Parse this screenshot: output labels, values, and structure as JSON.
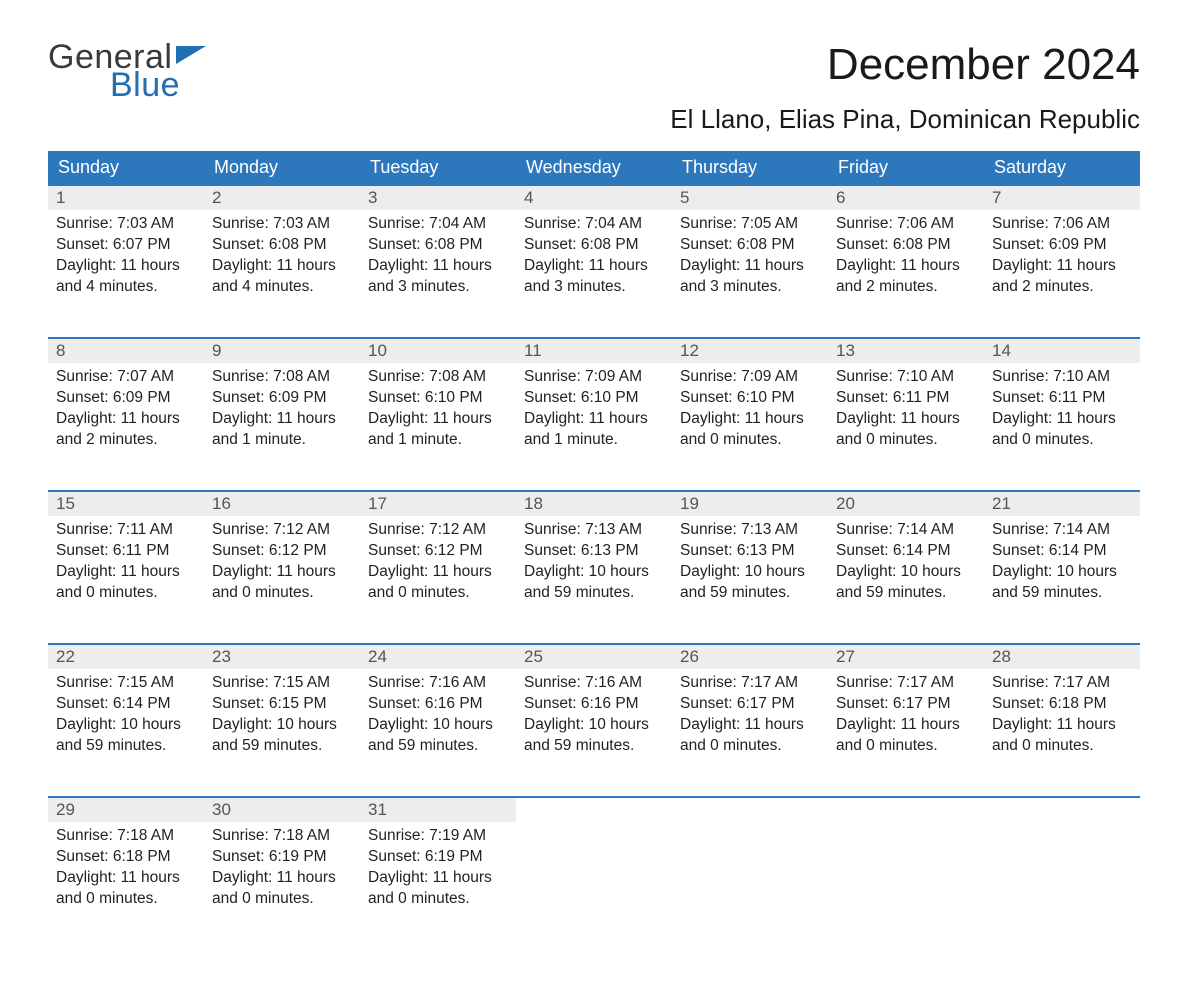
{
  "logo": {
    "word1": "General",
    "word2": "Blue",
    "flag_color": "#1f6fb2",
    "text_color_dark": "#3a3a3a"
  },
  "title": "December 2024",
  "location": "El Llano, Elias Pina, Dominican Republic",
  "colors": {
    "header_bg": "#2d77bd",
    "header_text": "#ffffff",
    "daynum_bg": "#ededed",
    "border": "#2d77bd",
    "body_text": "#222222",
    "page_bg": "#ffffff"
  },
  "weekdays": [
    "Sunday",
    "Monday",
    "Tuesday",
    "Wednesday",
    "Thursday",
    "Friday",
    "Saturday"
  ],
  "labels": {
    "sunrise": "Sunrise:",
    "sunset": "Sunset:",
    "daylight": "Daylight:"
  },
  "weeks": [
    [
      {
        "n": "1",
        "sunrise": "7:03 AM",
        "sunset": "6:07 PM",
        "d1": "11 hours",
        "d2": "and 4 minutes."
      },
      {
        "n": "2",
        "sunrise": "7:03 AM",
        "sunset": "6:08 PM",
        "d1": "11 hours",
        "d2": "and 4 minutes."
      },
      {
        "n": "3",
        "sunrise": "7:04 AM",
        "sunset": "6:08 PM",
        "d1": "11 hours",
        "d2": "and 3 minutes."
      },
      {
        "n": "4",
        "sunrise": "7:04 AM",
        "sunset": "6:08 PM",
        "d1": "11 hours",
        "d2": "and 3 minutes."
      },
      {
        "n": "5",
        "sunrise": "7:05 AM",
        "sunset": "6:08 PM",
        "d1": "11 hours",
        "d2": "and 3 minutes."
      },
      {
        "n": "6",
        "sunrise": "7:06 AM",
        "sunset": "6:08 PM",
        "d1": "11 hours",
        "d2": "and 2 minutes."
      },
      {
        "n": "7",
        "sunrise": "7:06 AM",
        "sunset": "6:09 PM",
        "d1": "11 hours",
        "d2": "and 2 minutes."
      }
    ],
    [
      {
        "n": "8",
        "sunrise": "7:07 AM",
        "sunset": "6:09 PM",
        "d1": "11 hours",
        "d2": "and 2 minutes."
      },
      {
        "n": "9",
        "sunrise": "7:08 AM",
        "sunset": "6:09 PM",
        "d1": "11 hours",
        "d2": "and 1 minute."
      },
      {
        "n": "10",
        "sunrise": "7:08 AM",
        "sunset": "6:10 PM",
        "d1": "11 hours",
        "d2": "and 1 minute."
      },
      {
        "n": "11",
        "sunrise": "7:09 AM",
        "sunset": "6:10 PM",
        "d1": "11 hours",
        "d2": "and 1 minute."
      },
      {
        "n": "12",
        "sunrise": "7:09 AM",
        "sunset": "6:10 PM",
        "d1": "11 hours",
        "d2": "and 0 minutes."
      },
      {
        "n": "13",
        "sunrise": "7:10 AM",
        "sunset": "6:11 PM",
        "d1": "11 hours",
        "d2": "and 0 minutes."
      },
      {
        "n": "14",
        "sunrise": "7:10 AM",
        "sunset": "6:11 PM",
        "d1": "11 hours",
        "d2": "and 0 minutes."
      }
    ],
    [
      {
        "n": "15",
        "sunrise": "7:11 AM",
        "sunset": "6:11 PM",
        "d1": "11 hours",
        "d2": "and 0 minutes."
      },
      {
        "n": "16",
        "sunrise": "7:12 AM",
        "sunset": "6:12 PM",
        "d1": "11 hours",
        "d2": "and 0 minutes."
      },
      {
        "n": "17",
        "sunrise": "7:12 AM",
        "sunset": "6:12 PM",
        "d1": "11 hours",
        "d2": "and 0 minutes."
      },
      {
        "n": "18",
        "sunrise": "7:13 AM",
        "sunset": "6:13 PM",
        "d1": "10 hours",
        "d2": "and 59 minutes."
      },
      {
        "n": "19",
        "sunrise": "7:13 AM",
        "sunset": "6:13 PM",
        "d1": "10 hours",
        "d2": "and 59 minutes."
      },
      {
        "n": "20",
        "sunrise": "7:14 AM",
        "sunset": "6:14 PM",
        "d1": "10 hours",
        "d2": "and 59 minutes."
      },
      {
        "n": "21",
        "sunrise": "7:14 AM",
        "sunset": "6:14 PM",
        "d1": "10 hours",
        "d2": "and 59 minutes."
      }
    ],
    [
      {
        "n": "22",
        "sunrise": "7:15 AM",
        "sunset": "6:14 PM",
        "d1": "10 hours",
        "d2": "and 59 minutes."
      },
      {
        "n": "23",
        "sunrise": "7:15 AM",
        "sunset": "6:15 PM",
        "d1": "10 hours",
        "d2": "and 59 minutes."
      },
      {
        "n": "24",
        "sunrise": "7:16 AM",
        "sunset": "6:16 PM",
        "d1": "10 hours",
        "d2": "and 59 minutes."
      },
      {
        "n": "25",
        "sunrise": "7:16 AM",
        "sunset": "6:16 PM",
        "d1": "10 hours",
        "d2": "and 59 minutes."
      },
      {
        "n": "26",
        "sunrise": "7:17 AM",
        "sunset": "6:17 PM",
        "d1": "11 hours",
        "d2": "and 0 minutes."
      },
      {
        "n": "27",
        "sunrise": "7:17 AM",
        "sunset": "6:17 PM",
        "d1": "11 hours",
        "d2": "and 0 minutes."
      },
      {
        "n": "28",
        "sunrise": "7:17 AM",
        "sunset": "6:18 PM",
        "d1": "11 hours",
        "d2": "and 0 minutes."
      }
    ],
    [
      {
        "n": "29",
        "sunrise": "7:18 AM",
        "sunset": "6:18 PM",
        "d1": "11 hours",
        "d2": "and 0 minutes."
      },
      {
        "n": "30",
        "sunrise": "7:18 AM",
        "sunset": "6:19 PM",
        "d1": "11 hours",
        "d2": "and 0 minutes."
      },
      {
        "n": "31",
        "sunrise": "7:19 AM",
        "sunset": "6:19 PM",
        "d1": "11 hours",
        "d2": "and 0 minutes."
      },
      null,
      null,
      null,
      null
    ]
  ]
}
